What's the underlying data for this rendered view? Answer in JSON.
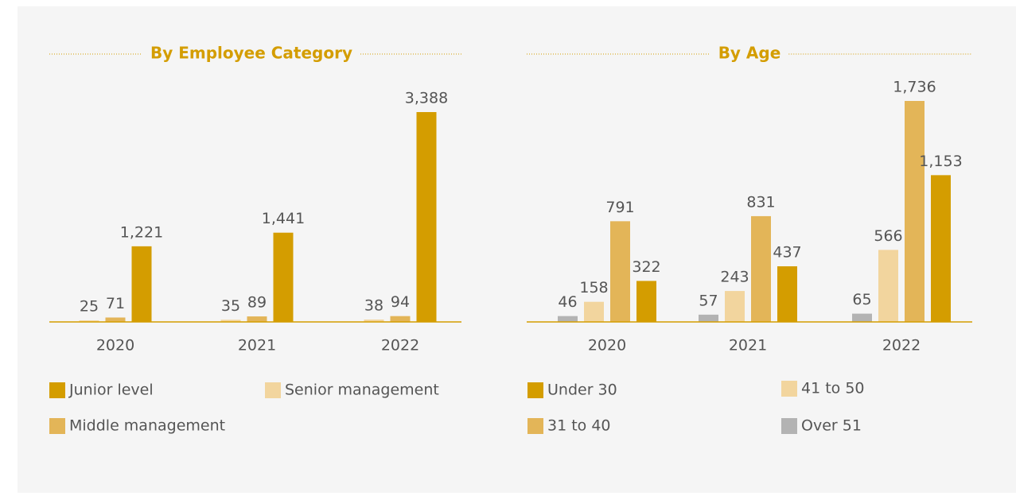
{
  "chart_data": [
    {
      "type": "bar",
      "title": "By Employee Category",
      "categories": [
        "2020",
        "2021",
        "2022"
      ],
      "series": [
        {
          "name": "Senior management",
          "color": "#f2d59e",
          "values": [
            25,
            35,
            38
          ]
        },
        {
          "name": "Middle management",
          "color": "#e3b558",
          "values": [
            71,
            89,
            94
          ]
        },
        {
          "name": "Junior level",
          "color": "#d49d00",
          "values": [
            1221,
            1441,
            3388
          ],
          "value_labels": [
            "1,221",
            "1,441",
            "3,388"
          ]
        }
      ]
    },
    {
      "type": "bar",
      "title": "By Age",
      "categories": [
        "2020",
        "2021",
        "2022"
      ],
      "series": [
        {
          "name": "Over 51",
          "color": "#b3b3b3",
          "values": [
            46,
            57,
            65
          ]
        },
        {
          "name": "41 to 50",
          "color": "#f2d59e",
          "values": [
            158,
            243,
            566
          ]
        },
        {
          "name": "31 to 40",
          "color": "#e3b558",
          "values": [
            791,
            831,
            1736
          ],
          "value_labels": [
            "791",
            "831",
            "1,736"
          ]
        },
        {
          "name": "Under 30",
          "color": "#d49d00",
          "values": [
            322,
            437,
            1153
          ],
          "value_labels": [
            "322",
            "437",
            "1,153"
          ]
        }
      ]
    }
  ]
}
